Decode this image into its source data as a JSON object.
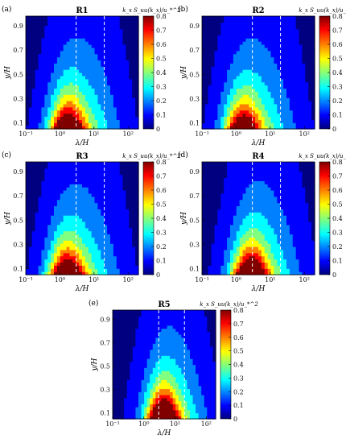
{
  "chart_data": {
    "type": "heatmap",
    "colorbar": {
      "label": "k_x S_uu(k_x)/u_*^2",
      "range": [
        0,
        0.8
      ],
      "ticks": [
        "0.8",
        "0.7",
        "0.6",
        "0.5",
        "0.4",
        "0.3",
        "0.2",
        "0.1",
        "0"
      ],
      "colormap": "jet"
    },
    "shared": {
      "xlabel": "λ/H",
      "ylabel": "y/H",
      "x_scale": "log",
      "xlim": [
        0.1,
        200
      ],
      "ylim": [
        0.05,
        0.98
      ],
      "x_ticks": [
        "10⁻¹",
        "10⁰",
        "10¹",
        "10²"
      ],
      "y_ticks": [
        "0.9",
        "0.7",
        "0.5",
        "0.3",
        "0.1"
      ]
    },
    "panels": [
      {
        "panel": "(a)",
        "title": "R1",
        "dashed_lines_lambda_over_H": [
          3,
          20
        ],
        "peak": {
          "lambda_over_H": 1.6,
          "y_over_H": 0.07,
          "value": 0.8
        }
      },
      {
        "panel": "(b)",
        "title": "R2",
        "dashed_lines_lambda_over_H": [
          3,
          20
        ],
        "peak": {
          "lambda_over_H": 1.5,
          "y_over_H": 0.07,
          "value": 0.72
        }
      },
      {
        "panel": "(c)",
        "title": "R3",
        "dashed_lines_lambda_over_H": [
          3,
          20
        ],
        "peak": {
          "lambda_over_H": 1.5,
          "y_over_H": 0.07,
          "value": 0.78
        }
      },
      {
        "panel": "(d)",
        "title": "R4",
        "dashed_lines_lambda_over_H": [
          3,
          20
        ],
        "peak": {
          "lambda_over_H": 2.5,
          "y_over_H": 0.08,
          "value": 0.8
        }
      },
      {
        "panel": "(e)",
        "title": "R5",
        "dashed_lines_lambda_over_H": [
          3,
          20
        ],
        "peak": {
          "lambda_over_H": 4,
          "y_over_H": 0.12,
          "value": 0.75
        }
      }
    ]
  }
}
